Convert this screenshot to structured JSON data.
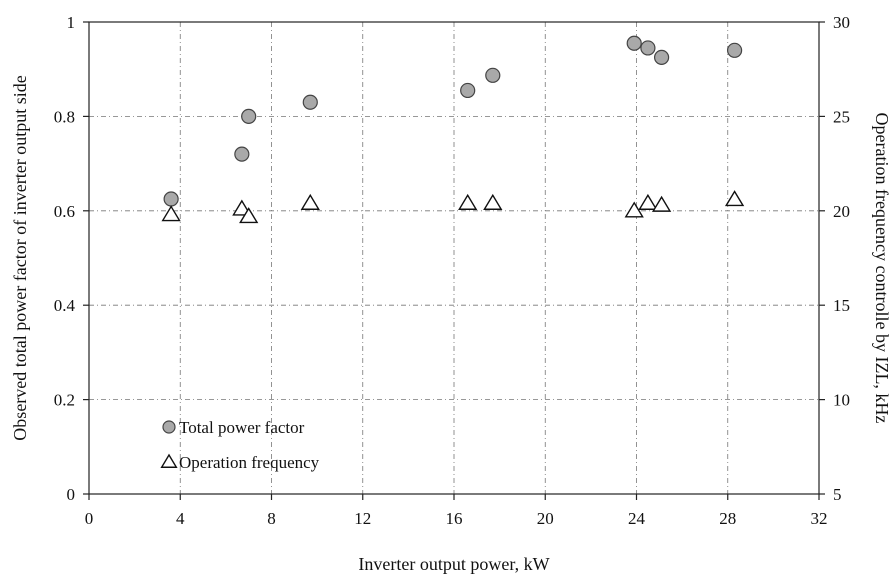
{
  "chart_data": {
    "type": "scatter",
    "xlabel": "Inverter output power, kW",
    "ylabel": "Observed total power factor of inverter output side",
    "y2label": "Operation frequency controlle by IZL, kHz",
    "xlim": [
      0,
      32
    ],
    "ylim": [
      0,
      1
    ],
    "y2lim": [
      5,
      30
    ],
    "x_ticks": [
      "0",
      "4",
      "8",
      "12",
      "16",
      "20",
      "24",
      "28",
      "32"
    ],
    "y_ticks": [
      "0",
      "0.2",
      "0.4",
      "0.6",
      "0.8",
      "1"
    ],
    "y2_ticks": [
      "5",
      "10",
      "15",
      "20",
      "25",
      "30"
    ],
    "grid": true,
    "legend_placement": "bottom-left",
    "point_color": "#a9a9a9",
    "series": [
      {
        "name": "Total power factor",
        "axis": "left",
        "marker": "circle",
        "points": [
          {
            "x": 3.6,
            "y": 0.625
          },
          {
            "x": 6.7,
            "y": 0.72
          },
          {
            "x": 7.0,
            "y": 0.8
          },
          {
            "x": 9.7,
            "y": 0.83
          },
          {
            "x": 16.6,
            "y": 0.855
          },
          {
            "x": 17.7,
            "y": 0.887
          },
          {
            "x": 23.9,
            "y": 0.955
          },
          {
            "x": 24.5,
            "y": 0.945
          },
          {
            "x": 25.1,
            "y": 0.925
          },
          {
            "x": 28.3,
            "y": 0.94
          }
        ]
      },
      {
        "name": "Operation frequency",
        "axis": "right",
        "marker": "triangle",
        "points": [
          {
            "x": 3.6,
            "y": 19.8
          },
          {
            "x": 6.7,
            "y": 20.1
          },
          {
            "x": 7.0,
            "y": 19.7
          },
          {
            "x": 9.7,
            "y": 20.4
          },
          {
            "x": 16.6,
            "y": 20.4
          },
          {
            "x": 17.7,
            "y": 20.4
          },
          {
            "x": 23.9,
            "y": 20.0
          },
          {
            "x": 24.5,
            "y": 20.4
          },
          {
            "x": 25.1,
            "y": 20.3
          },
          {
            "x": 28.3,
            "y": 20.6
          }
        ]
      }
    ]
  }
}
